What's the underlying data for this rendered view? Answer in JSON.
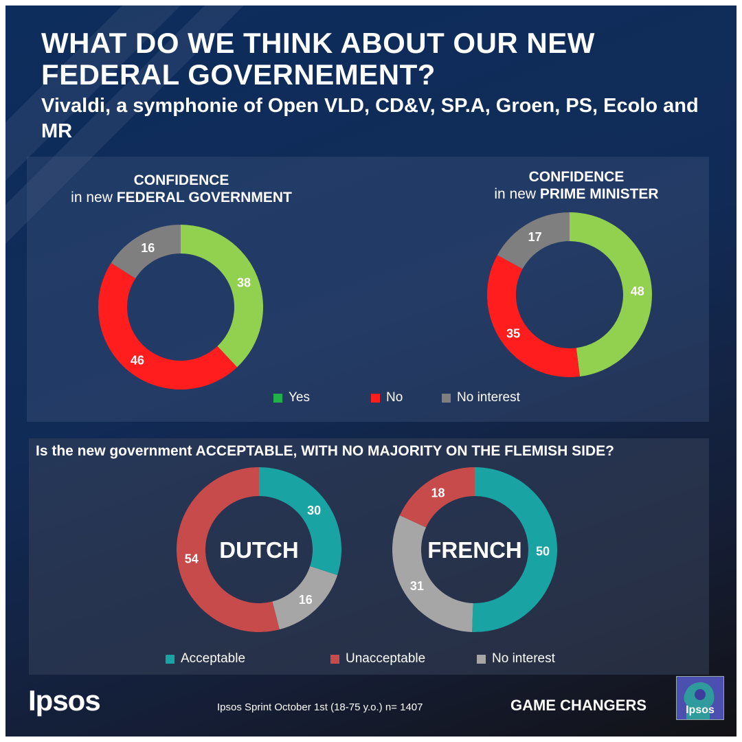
{
  "title": "WHAT DO WE THINK ABOUT OUR NEW FEDERAL GOVERNEMENT?",
  "subtitle": "Vivaldi, a symphonie of Open VLD, CD&V, SP.A, Groen, PS, Ecolo and MR",
  "top_section": {
    "chart1": {
      "heading_line1": "CONFIDENCE",
      "heading_prefix": "in new",
      "heading_strong": "FEDERAL GOVERNMENT"
    },
    "chart2": {
      "heading_line1": "CONFIDENCE",
      "heading_prefix": "in new",
      "heading_strong": "PRIME MINISTER"
    },
    "legend": [
      {
        "label": "Yes",
        "color": "#21b14b"
      },
      {
        "label": "No",
        "color": "#ff1d1d"
      },
      {
        "label": "No interest",
        "color": "#7f7f7f"
      }
    ]
  },
  "bottom_section": {
    "question": "Is the new government ACCEPTABLE, WITH NO MAJORITY ON THE FLEMISH SIDE?",
    "legend": [
      {
        "label": "Acceptable",
        "color": "#1aa3a3"
      },
      {
        "label": "Unacceptable",
        "color": "#c84b4b"
      },
      {
        "label": "No interest",
        "color": "#a6a6a6"
      }
    ]
  },
  "footer": {
    "logo": "Ipsos",
    "source": "Ipsos Sprint  October 1st (18-75 y.o.) n= 1407",
    "tagline": "GAME CHANGERS",
    "badge_text": "Ipsos"
  },
  "chart_data": [
    {
      "type": "pie",
      "title": "CONFIDENCE in new FEDERAL GOVERNMENT",
      "categories": [
        "Yes",
        "No",
        "No interest"
      ],
      "values": [
        38,
        46,
        16
      ],
      "colors": [
        "#92d050",
        "#ff1d1d",
        "#7f7f7f"
      ]
    },
    {
      "type": "pie",
      "title": "CONFIDENCE in new PRIME MINISTER",
      "categories": [
        "Yes",
        "No",
        "No interest"
      ],
      "values": [
        48,
        35,
        17
      ],
      "colors": [
        "#92d050",
        "#ff1d1d",
        "#7f7f7f"
      ]
    },
    {
      "type": "pie",
      "title": "DUTCH",
      "categories": [
        "Acceptable",
        "No interest",
        "Unacceptable"
      ],
      "values": [
        30,
        16,
        54
      ],
      "colors": [
        "#1aa3a3",
        "#a6a6a6",
        "#c84b4b"
      ]
    },
    {
      "type": "pie",
      "title": "FRENCH",
      "categories": [
        "Acceptable",
        "No interest",
        "Unacceptable"
      ],
      "values": [
        50,
        31,
        18
      ],
      "colors": [
        "#1aa3a3",
        "#a6a6a6",
        "#c84b4b"
      ]
    }
  ]
}
